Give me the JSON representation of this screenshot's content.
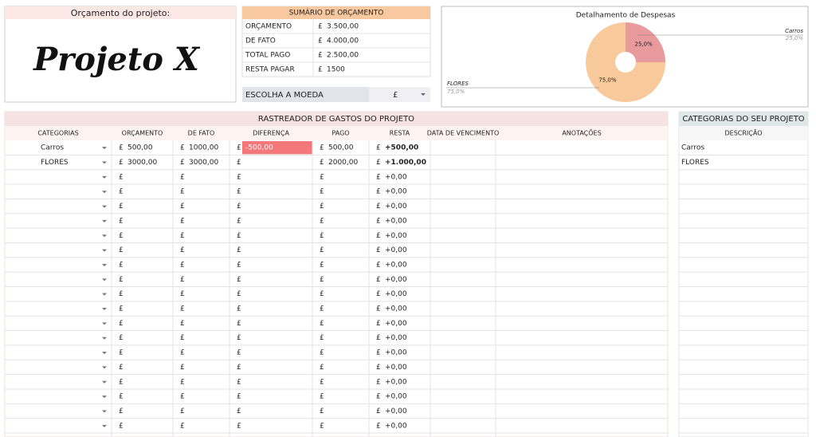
{
  "project_title_box": {
    "label": "Orçamento do projeto:",
    "name": "Projeto X"
  },
  "summary": {
    "title": "SUMÁRIO DE ORÇAMENTO",
    "rows": [
      [
        "ORÇAMENTO",
        "3.500,00"
      ],
      [
        "DE FATO",
        "4.000,00"
      ],
      [
        "TOTAL PAGO",
        "2.500,00"
      ],
      [
        "RESTA PAGAR",
        "1500"
      ]
    ]
  },
  "currency_selector": {
    "label": "ESCOLHA A MOEDA",
    "value": "£"
  },
  "chart_data": {
    "type": "pie",
    "title": "Detalhamento de Despesas",
    "categories": [
      "Carros",
      "FLORES"
    ],
    "values": [
      25,
      75
    ],
    "value_labels": [
      "25,0%",
      "75,0%"
    ],
    "colors": [
      "#e89a9c",
      "#f7c99b"
    ]
  },
  "tracker": {
    "title": "RASTREADOR DE GASTOS DO PROJETO",
    "columns": [
      "CATEGORIAS",
      "ORÇAMENTO",
      "DE FATO",
      "DIFERENÇA",
      "PAGO",
      "RESTA",
      "DATA DE VENCIMENTO",
      "ANOTAÇÕES"
    ],
    "rows": [
      [
        "Carros",
        "500,00",
        "1000,00",
        "-500,00",
        "500,00",
        "+500,00"
      ],
      [
        "FLORES",
        "3000,00",
        "3000,00",
        null,
        "2000,00",
        "+1.000,00"
      ],
      [
        null,
        null,
        null,
        null,
        null,
        "+0,00"
      ],
      [
        null,
        null,
        null,
        null,
        null,
        "+0,00"
      ],
      [
        null,
        null,
        null,
        null,
        null,
        "+0,00"
      ],
      [
        null,
        null,
        null,
        null,
        null,
        "+0,00"
      ],
      [
        null,
        null,
        null,
        null,
        null,
        "+0,00"
      ],
      [
        null,
        null,
        null,
        null,
        null,
        "+0,00"
      ],
      [
        null,
        null,
        null,
        null,
        null,
        "+0,00"
      ],
      [
        null,
        null,
        null,
        null,
        null,
        "+0,00"
      ],
      [
        null,
        null,
        null,
        null,
        null,
        "+0,00"
      ],
      [
        null,
        null,
        null,
        null,
        null,
        "+0,00"
      ],
      [
        null,
        null,
        null,
        null,
        null,
        "+0,00"
      ],
      [
        null,
        null,
        null,
        null,
        null,
        "+0,00"
      ],
      [
        null,
        null,
        null,
        null,
        null,
        "+0,00"
      ],
      [
        null,
        null,
        null,
        null,
        null,
        "+0,00"
      ],
      [
        null,
        null,
        null,
        null,
        null,
        "+0,00"
      ],
      [
        null,
        null,
        null,
        null,
        null,
        "+0,00"
      ],
      [
        null,
        null,
        null,
        null,
        null,
        "+0,00"
      ],
      [
        null,
        null,
        null,
        null,
        null,
        "+0,00"
      ]
    ]
  },
  "categories_panel": {
    "title": "CATEGORIAS DO SEU PROJETO",
    "column": "DESCRIÇÃO",
    "items": [
      "Carros",
      "FLORES"
    ]
  }
}
